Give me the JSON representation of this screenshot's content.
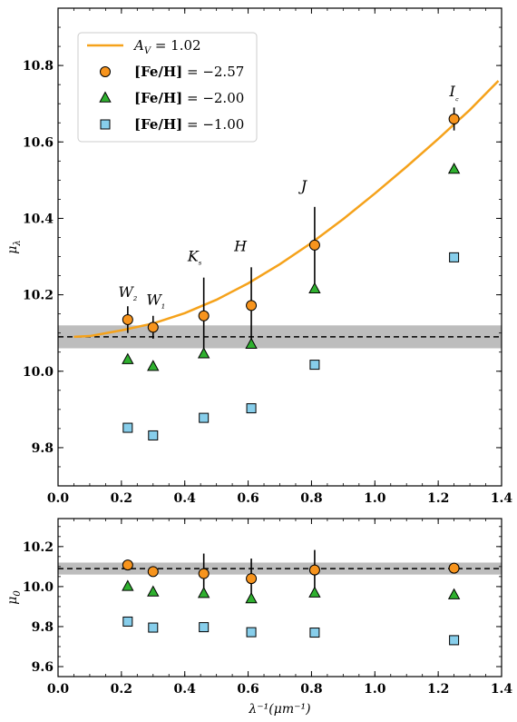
{
  "colors": {
    "curve": "#f5a21b",
    "circle_fill": "#f7941d",
    "triangle_fill": "#2fb02f",
    "square_fill": "#87ceeb",
    "band": "#bdbdbd"
  },
  "chart_data": [
    {
      "type": "scatter",
      "ylabel": "μ_λ",
      "xlim": [
        0.0,
        1.4
      ],
      "ylim": [
        9.7,
        10.95
      ],
      "xticks": [
        "0.0",
        "0.2",
        "0.4",
        "0.6",
        "0.8",
        "1.0",
        "1.2",
        "1.4"
      ],
      "yticks": [
        "9.8",
        "10.0",
        "10.2",
        "10.4",
        "10.6",
        "10.8"
      ],
      "xtick_values": [
        0.0,
        0.2,
        0.4,
        0.6,
        0.8,
        1.0,
        1.2,
        1.4
      ],
      "ytick_values": [
        9.8,
        10.0,
        10.2,
        10.4,
        10.6,
        10.8
      ],
      "reference_line": 10.09,
      "reference_band": [
        10.06,
        10.12
      ],
      "curve": {
        "name": "A_V = 1.02",
        "x": [
          0.05,
          0.1,
          0.2,
          0.3,
          0.4,
          0.5,
          0.6,
          0.7,
          0.8,
          0.9,
          1.0,
          1.1,
          1.2,
          1.3,
          1.39
        ],
        "y": [
          10.09,
          10.092,
          10.107,
          10.125,
          10.152,
          10.187,
          10.23,
          10.28,
          10.336,
          10.398,
          10.465,
          10.535,
          10.608,
          10.684,
          10.76
        ]
      },
      "series": [
        {
          "name": "[Fe/H] = −2.57",
          "marker": "circle",
          "x": [
            0.22,
            0.3,
            0.46,
            0.61,
            0.81,
            1.25
          ],
          "y": [
            10.135,
            10.115,
            10.145,
            10.172,
            10.33,
            10.66
          ],
          "yerr": [
            0.035,
            0.03,
            0.1,
            0.1,
            0.1,
            0.03
          ]
        },
        {
          "name": "[Fe/H] = −2.00",
          "marker": "triangle",
          "x": [
            0.22,
            0.3,
            0.46,
            0.61,
            0.81,
            1.25
          ],
          "y": [
            10.03,
            10.012,
            10.045,
            10.07,
            10.215,
            10.528
          ]
        },
        {
          "name": "[Fe/H] = −1.00",
          "marker": "square",
          "x": [
            0.22,
            0.3,
            0.46,
            0.61,
            0.81,
            1.25
          ],
          "y": [
            9.852,
            9.832,
            9.878,
            9.903,
            10.017,
            10.298
          ]
        }
      ],
      "band_labels": [
        {
          "text": "W₂",
          "x": 0.22,
          "y": 10.135
        },
        {
          "text": "W₁",
          "x": 0.3,
          "y": 10.115
        },
        {
          "text": "Kₛ",
          "x": 0.46,
          "y": 10.145
        },
        {
          "text": "H",
          "x": 0.61,
          "y": 10.172
        },
        {
          "text": "J",
          "x": 0.81,
          "y": 10.33
        },
        {
          "text": "I꜀",
          "x": 1.25,
          "y": 10.66
        }
      ],
      "legend": [
        "A_V = 1.02",
        "[Fe/H] = −2.57",
        "[Fe/H] = −2.00",
        "[Fe/H] = −1.00"
      ],
      "legend_placement": "top-left"
    },
    {
      "type": "scatter",
      "xlabel": "λ⁻¹(μm⁻¹)",
      "ylabel": "μ_0",
      "xlim": [
        0.0,
        1.4
      ],
      "ylim": [
        9.55,
        10.34
      ],
      "xticks": [
        "0.0",
        "0.2",
        "0.4",
        "0.6",
        "0.8",
        "1.0",
        "1.2",
        "1.4"
      ],
      "yticks": [
        "9.6",
        "9.8",
        "10.0",
        "10.2"
      ],
      "xtick_values": [
        0.0,
        0.2,
        0.4,
        0.6,
        0.8,
        1.0,
        1.2,
        1.4
      ],
      "ytick_values": [
        9.6,
        9.8,
        10.0,
        10.2
      ],
      "reference_line": 10.09,
      "reference_band": [
        10.06,
        10.12
      ],
      "series": [
        {
          "name": "[Fe/H] = −2.57",
          "marker": "circle",
          "x": [
            0.22,
            0.3,
            0.46,
            0.61,
            0.81,
            1.25
          ],
          "y": [
            10.108,
            10.075,
            10.065,
            10.04,
            10.083,
            10.092
          ],
          "yerr": [
            0.02,
            0.02,
            0.1,
            0.1,
            0.1,
            0.02
          ]
        },
        {
          "name": "[Fe/H] = −2.00",
          "marker": "triangle",
          "x": [
            0.22,
            0.3,
            0.46,
            0.61,
            0.81,
            1.25
          ],
          "y": [
            10.0,
            9.972,
            9.965,
            9.938,
            9.967,
            9.958
          ]
        },
        {
          "name": "[Fe/H] = −1.00",
          "marker": "square",
          "x": [
            0.22,
            0.3,
            0.46,
            0.61,
            0.81,
            1.25
          ],
          "y": [
            9.825,
            9.795,
            9.797,
            9.772,
            9.77,
            9.732
          ]
        }
      ]
    }
  ]
}
